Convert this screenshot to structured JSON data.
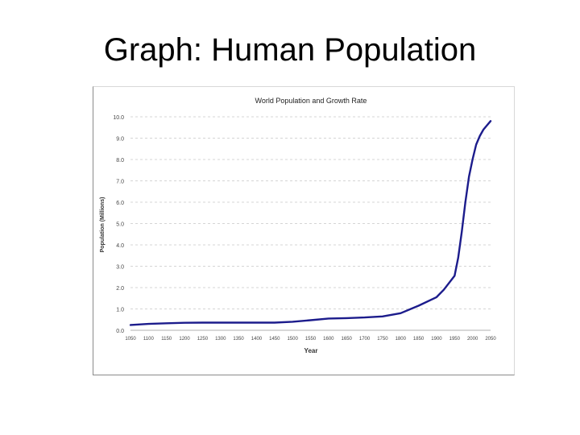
{
  "slide": {
    "title": "Graph: Human Population"
  },
  "chart_data": {
    "type": "line",
    "title": "World Population and Growth Rate",
    "xlabel": "Year",
    "ylabel": "Population (Millions)",
    "ylim": [
      0,
      10
    ],
    "xlim": [
      1050,
      2050
    ],
    "y_tick_labels": [
      "0.0",
      "1.0",
      "2.0",
      "3.0",
      "4.0",
      "5.0",
      "6.0",
      "7.0",
      "8.0",
      "9.0",
      "10.0"
    ],
    "x_tick_labels": [
      "1050",
      "1100",
      "1150",
      "1200",
      "1250",
      "1300",
      "1350",
      "1400",
      "1450",
      "1500",
      "1550",
      "1600",
      "1650",
      "1700",
      "1750",
      "1800",
      "1850",
      "1900",
      "1950",
      "2000",
      "2050"
    ],
    "grid": "horizontal dashed",
    "line_color": "#1c1c8c",
    "series": [
      {
        "x": [
          1050,
          1100,
          1150,
          1200,
          1250,
          1300,
          1350,
          1400,
          1450,
          1500,
          1550,
          1600,
          1650,
          1700,
          1750,
          1800,
          1850,
          1900,
          1920,
          1950,
          1960,
          1970,
          1980,
          1990,
          2000,
          2010,
          2020,
          2030,
          2040,
          2050
        ],
        "y": [
          0.25,
          0.3,
          0.33,
          0.35,
          0.36,
          0.36,
          0.36,
          0.36,
          0.36,
          0.4,
          0.47,
          0.55,
          0.57,
          0.6,
          0.65,
          0.8,
          1.15,
          1.55,
          1.9,
          2.55,
          3.4,
          4.6,
          6.0,
          7.2,
          8.0,
          8.7,
          9.1,
          9.4,
          9.6,
          9.8
        ]
      }
    ]
  }
}
